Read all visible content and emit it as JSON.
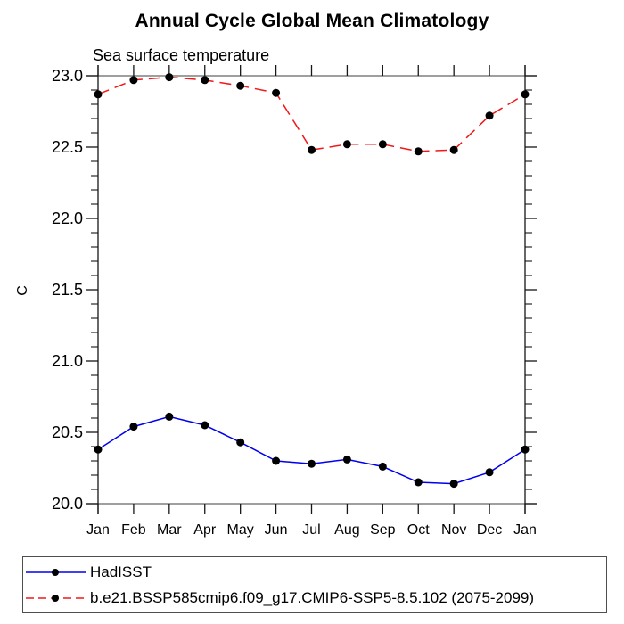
{
  "chart_data": {
    "type": "line",
    "title": "Annual Cycle Global Mean Climatology",
    "subtitle": "Sea surface temperature",
    "ylabel": "C",
    "xlabel": "",
    "categories": [
      "Jan",
      "Feb",
      "Mar",
      "Apr",
      "May",
      "Jun",
      "Jul",
      "Aug",
      "Sep",
      "Oct",
      "Nov",
      "Dec",
      "Jan"
    ],
    "ylim": [
      20.0,
      23.0
    ],
    "ytick_major": 0.5,
    "ytick_minor": 0.1,
    "ytick_labels": [
      "20.0",
      "20.5",
      "21.0",
      "21.5",
      "22.0",
      "22.5",
      "23.0"
    ],
    "grid": false,
    "legend_position": "bottom-left",
    "marker": "filled-circle",
    "marker_color": "#000000",
    "axis_color": "#000000",
    "series": [
      {
        "name": "HadISST",
        "color": "#0000ee",
        "line_style": "solid",
        "values": [
          20.38,
          20.54,
          20.61,
          20.55,
          20.43,
          20.3,
          20.28,
          20.31,
          20.26,
          20.15,
          20.14,
          20.22,
          20.38
        ]
      },
      {
        "name": "b.e21.BSSP585cmip6.f09_g17.CMIP6-SSP5-8.5.102 (2075-2099)",
        "color": "#f01818",
        "line_style": "dashed",
        "values": [
          22.87,
          22.97,
          22.99,
          22.97,
          22.93,
          22.88,
          22.48,
          22.52,
          22.52,
          22.47,
          22.48,
          22.72,
          22.87
        ]
      }
    ]
  }
}
